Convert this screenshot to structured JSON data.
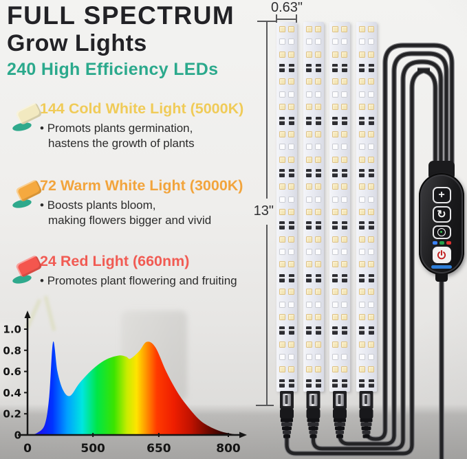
{
  "header": {
    "title_line1": "FULL SPECTRUM",
    "title_line2": "Grow Lights",
    "subtitle": "240 High Efficiency LEDs",
    "subtitle_color": "#2ba98c"
  },
  "features": [
    {
      "heading": "144 Cold White Light (5000K)",
      "heading_color": "#f0cb58",
      "icon": "cold-white-led-chip-icon",
      "icon_color": "#f2e9c0",
      "lines": [
        "Promots plants germination,",
        "hastens the growth of plants"
      ]
    },
    {
      "heading": "72 Warm White Light (3000K)",
      "heading_color": "#f2a43c",
      "icon": "warm-white-led-chip-icon",
      "icon_color": "#f5a93f",
      "lines": [
        "Boosts plants bloom,",
        "making flowers bigger and vivid"
      ]
    },
    {
      "heading": "24 Red Light (660nm)",
      "heading_color": "#f15b53",
      "icon": "red-led-chip-icon",
      "icon_color": "#f4564e",
      "lines": [
        "Promotes plant flowering and fruiting"
      ]
    }
  ],
  "leaf_accent_color": "#2fa98c",
  "grow_light": {
    "strip_count": 4,
    "dimension_width": "0.63\"",
    "dimension_height": "13\"",
    "led_colors": {
      "warm": "#f3e6b8",
      "white": "#fcfcfd",
      "resistor": "#2e2e33"
    }
  },
  "controller": {
    "buttons": [
      {
        "name": "brightness",
        "glyph": "+"
      },
      {
        "name": "mode",
        "glyph": "↻"
      },
      {
        "name": "timer",
        "glyph": ""
      },
      {
        "name": "power",
        "glyph": ""
      }
    ],
    "indicator_colors": [
      "#3b82f6",
      "#22a04a",
      "#e03131"
    ],
    "bar_color": "#2f7fd9",
    "power_glyph_color": "#c22020"
  },
  "chart_data": {
    "type": "area",
    "title": "",
    "xlabel": "",
    "ylabel": "",
    "x_ticks": [
      {
        "label": "0",
        "pos": 0.0
      },
      {
        "label": "500",
        "pos": 0.302
      },
      {
        "label": "650",
        "pos": 0.606
      },
      {
        "label": "800",
        "pos": 0.927
      }
    ],
    "y_ticks": [
      "0",
      "0.2",
      "0.4",
      "0.6",
      "0.8",
      "1.0"
    ],
    "ylim": [
      0,
      1.05
    ],
    "curve_points": [
      [
        0.013,
        0.0
      ],
      [
        0.045,
        0.02
      ],
      [
        0.08,
        0.1
      ],
      [
        0.1,
        0.36
      ],
      [
        0.118,
        0.88
      ],
      [
        0.138,
        0.6
      ],
      [
        0.165,
        0.42
      ],
      [
        0.197,
        0.37
      ],
      [
        0.24,
        0.49
      ],
      [
        0.3,
        0.62
      ],
      [
        0.36,
        0.71
      ],
      [
        0.42,
        0.75
      ],
      [
        0.455,
        0.74
      ],
      [
        0.475,
        0.72
      ],
      [
        0.515,
        0.79
      ],
      [
        0.55,
        0.88
      ],
      [
        0.59,
        0.83
      ],
      [
        0.64,
        0.6
      ],
      [
        0.69,
        0.41
      ],
      [
        0.735,
        0.28
      ],
      [
        0.79,
        0.15
      ],
      [
        0.835,
        0.085
      ],
      [
        0.89,
        0.035
      ],
      [
        0.94,
        0.012
      ],
      [
        0.99,
        0.0
      ]
    ],
    "gradient": [
      [
        0,
        "#2b2be6"
      ],
      [
        0.055,
        "#1616f2"
      ],
      [
        0.11,
        "#0033ff"
      ],
      [
        0.18,
        "#00a0ff"
      ],
      [
        0.25,
        "#00e6e0"
      ],
      [
        0.32,
        "#00e646"
      ],
      [
        0.4,
        "#3ce400"
      ],
      [
        0.46,
        "#c8ec00"
      ],
      [
        0.505,
        "#ffe400"
      ],
      [
        0.55,
        "#ff9400"
      ],
      [
        0.6,
        "#ff3a00"
      ],
      [
        0.68,
        "#ee1e00"
      ],
      [
        0.76,
        "#c01200"
      ],
      [
        0.84,
        "#700900"
      ],
      [
        0.92,
        "#2a0300"
      ],
      [
        1,
        "#000000"
      ]
    ]
  }
}
